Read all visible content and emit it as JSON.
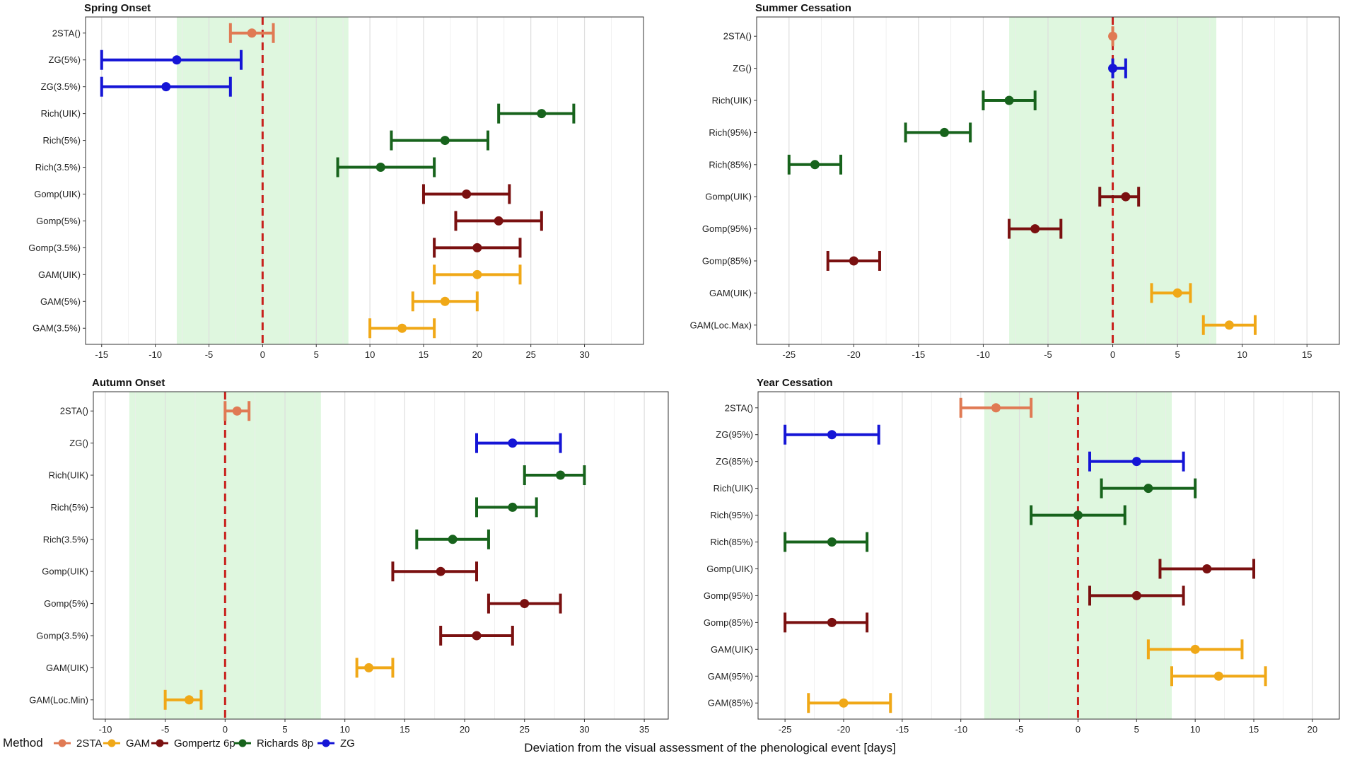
{
  "colors": {
    "2STA": "#e07a54",
    "GAM": "#f0a817",
    "Gompertz 6p": "#7a1010",
    "Richards 8p": "#17631c",
    "ZG": "#1515d6",
    "zero_line": "#c8201c",
    "band": "#dff7df"
  },
  "legend": {
    "title": "Method",
    "items": [
      {
        "key": "2STA",
        "label": "2STA"
      },
      {
        "key": "GAM",
        "label": "GAM"
      },
      {
        "key": "Gompertz 6p",
        "label": "Gompertz 6p"
      },
      {
        "key": "Richards 8p",
        "label": "Richards 8p"
      },
      {
        "key": "ZG",
        "label": "ZG"
      }
    ]
  },
  "xlabel": "Deviation from the visual assessment of the phenological event [days]",
  "chart_data": [
    {
      "type": "errorbar",
      "title": "Spring Onset",
      "xlim": [
        -16.5,
        35.5
      ],
      "xticks": [
        -15,
        -10,
        -5,
        0,
        5,
        10,
        15,
        20,
        25,
        30
      ],
      "band": [
        -8,
        8
      ],
      "rows": [
        {
          "label": "2STA()",
          "method": "2STA",
          "value": -1,
          "low": -3,
          "high": 1
        },
        {
          "label": "ZG(5%)",
          "method": "ZG",
          "value": -8,
          "low": -15,
          "high": -2
        },
        {
          "label": "ZG(3.5%)",
          "method": "ZG",
          "value": -9,
          "low": -15,
          "high": -3
        },
        {
          "label": "Rich(UIK)",
          "method": "Richards 8p",
          "value": 26,
          "low": 22,
          "high": 29
        },
        {
          "label": "Rich(5%)",
          "method": "Richards 8p",
          "value": 17,
          "low": 12,
          "high": 21
        },
        {
          "label": "Rich(3.5%)",
          "method": "Richards 8p",
          "value": 11,
          "low": 7,
          "high": 16
        },
        {
          "label": "Gomp(UIK)",
          "method": "Gompertz 6p",
          "value": 19,
          "low": 15,
          "high": 23
        },
        {
          "label": "Gomp(5%)",
          "method": "Gompertz 6p",
          "value": 22,
          "low": 18,
          "high": 26
        },
        {
          "label": "Gomp(3.5%)",
          "method": "Gompertz 6p",
          "value": 20,
          "low": 16,
          "high": 24
        },
        {
          "label": "GAM(UIK)",
          "method": "GAM",
          "value": 20,
          "low": 16,
          "high": 24
        },
        {
          "label": "GAM(5%)",
          "method": "GAM",
          "value": 17,
          "low": 14,
          "high": 20
        },
        {
          "label": "GAM(3.5%)",
          "method": "GAM",
          "value": 13,
          "low": 10,
          "high": 16
        }
      ]
    },
    {
      "type": "errorbar",
      "title": "Summer Cessation",
      "xlim": [
        -27.5,
        17.5
      ],
      "xticks": [
        -25,
        -20,
        -15,
        -10,
        -5,
        0,
        5,
        10,
        15
      ],
      "band": [
        -8,
        8
      ],
      "rows": [
        {
          "label": "2STA()",
          "method": "2STA",
          "value": 0,
          "low": 0,
          "high": 0
        },
        {
          "label": "ZG()",
          "method": "ZG",
          "value": 0,
          "low": 0,
          "high": 1
        },
        {
          "label": "Rich(UIK)",
          "method": "Richards 8p",
          "value": -8,
          "low": -10,
          "high": -6
        },
        {
          "label": "Rich(95%)",
          "method": "Richards 8p",
          "value": -13,
          "low": -16,
          "high": -11
        },
        {
          "label": "Rich(85%)",
          "method": "Richards 8p",
          "value": -23,
          "low": -25,
          "high": -21
        },
        {
          "label": "Gomp(UIK)",
          "method": "Gompertz 6p",
          "value": 1,
          "low": -1,
          "high": 2
        },
        {
          "label": "Gomp(95%)",
          "method": "Gompertz 6p",
          "value": -6,
          "low": -8,
          "high": -4
        },
        {
          "label": "Gomp(85%)",
          "method": "Gompertz 6p",
          "value": -20,
          "low": -22,
          "high": -18
        },
        {
          "label": "GAM(UIK)",
          "method": "GAM",
          "value": 5,
          "low": 3,
          "high": 6
        },
        {
          "label": "GAM(Loc.Max)",
          "method": "GAM",
          "value": 9,
          "low": 7,
          "high": 11
        }
      ]
    },
    {
      "type": "errorbar",
      "title": "Autumn Onset",
      "xlim": [
        -11,
        37
      ],
      "xticks": [
        -10,
        -5,
        0,
        5,
        10,
        15,
        20,
        25,
        30,
        35
      ],
      "band": [
        -8,
        8
      ],
      "rows": [
        {
          "label": "2STA()",
          "method": "2STA",
          "value": 1,
          "low": 0,
          "high": 2
        },
        {
          "label": "ZG()",
          "method": "ZG",
          "value": 24,
          "low": 21,
          "high": 28
        },
        {
          "label": "Rich(UIK)",
          "method": "Richards 8p",
          "value": 28,
          "low": 25,
          "high": 30
        },
        {
          "label": "Rich(5%)",
          "method": "Richards 8p",
          "value": 24,
          "low": 21,
          "high": 26
        },
        {
          "label": "Rich(3.5%)",
          "method": "Richards 8p",
          "value": 19,
          "low": 16,
          "high": 22
        },
        {
          "label": "Gomp(UIK)",
          "method": "Gompertz 6p",
          "value": 18,
          "low": 14,
          "high": 21
        },
        {
          "label": "Gomp(5%)",
          "method": "Gompertz 6p",
          "value": 25,
          "low": 22,
          "high": 28
        },
        {
          "label": "Gomp(3.5%)",
          "method": "Gompertz 6p",
          "value": 21,
          "low": 18,
          "high": 24
        },
        {
          "label": "GAM(UIK)",
          "method": "GAM",
          "value": 12,
          "low": 11,
          "high": 14
        },
        {
          "label": "GAM(Loc.Min)",
          "method": "GAM",
          "value": -3,
          "low": -5,
          "high": -2
        }
      ]
    },
    {
      "type": "errorbar",
      "title": "Year Cessation",
      "xlim": [
        -27.3,
        22.3
      ],
      "xticks": [
        -25,
        -20,
        -15,
        -10,
        -5,
        0,
        5,
        10,
        15,
        20
      ],
      "band": [
        -8,
        8
      ],
      "rows": [
        {
          "label": "2STA()",
          "method": "2STA",
          "value": -7,
          "low": -10,
          "high": -4
        },
        {
          "label": "ZG(95%)",
          "method": "ZG",
          "value": -21,
          "low": -25,
          "high": -17
        },
        {
          "label": "ZG(85%)",
          "method": "ZG",
          "value": 5,
          "low": 1,
          "high": 9
        },
        {
          "label": "Rich(UIK)",
          "method": "Richards 8p",
          "value": 6,
          "low": 2,
          "high": 10
        },
        {
          "label": "Rich(95%)",
          "method": "Richards 8p",
          "value": 0,
          "low": -4,
          "high": 4
        },
        {
          "label": "Rich(85%)",
          "method": "Richards 8p",
          "value": -21,
          "low": -25,
          "high": -18
        },
        {
          "label": "Gomp(UIK)",
          "method": "Gompertz 6p",
          "value": 11,
          "low": 7,
          "high": 15
        },
        {
          "label": "Gomp(95%)",
          "method": "Gompertz 6p",
          "value": 5,
          "low": 1,
          "high": 9
        },
        {
          "label": "Gomp(85%)",
          "method": "Gompertz 6p",
          "value": -21,
          "low": -25,
          "high": -18
        },
        {
          "label": "GAM(UIK)",
          "method": "GAM",
          "value": 10,
          "low": 6,
          "high": 14
        },
        {
          "label": "GAM(95%)",
          "method": "GAM",
          "value": 12,
          "low": 8,
          "high": 16
        },
        {
          "label": "GAM(85%)",
          "method": "GAM",
          "value": -20,
          "low": -23,
          "high": -16
        }
      ]
    }
  ]
}
